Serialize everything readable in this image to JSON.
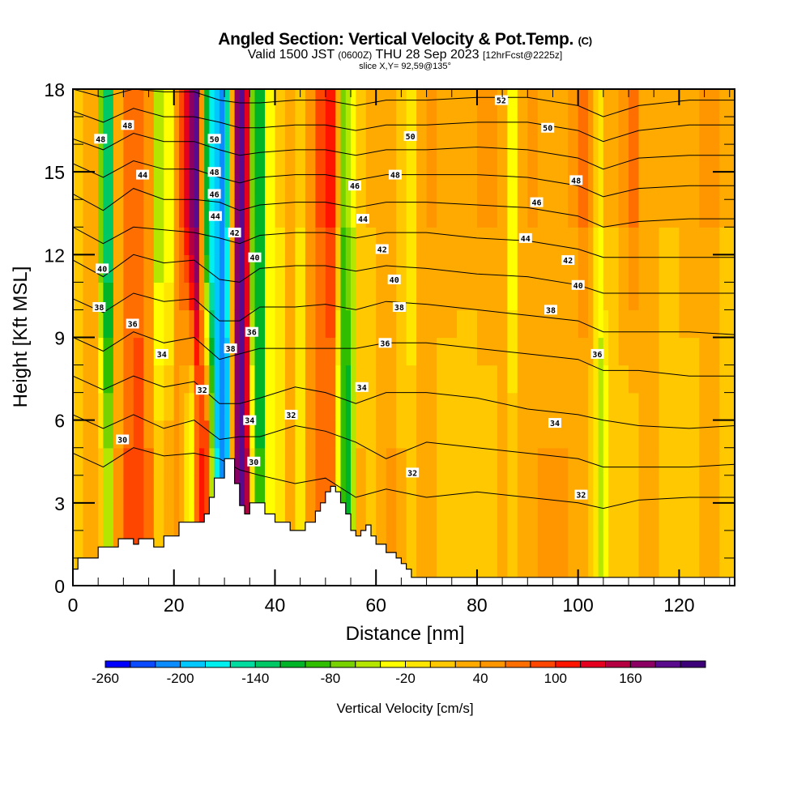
{
  "header": {
    "title_main": "Angled Section: Vertical Velocity & Pot.Temp.",
    "title_units": "(C)",
    "valid_prefix": "Valid 1500 JST",
    "valid_utc": "(0600Z)",
    "valid_date": "THU 28 Sep 2023",
    "forecast": "[12hrFcst@2225z]",
    "slice": "slice X,Y= 92,59@135°"
  },
  "chart_data": {
    "type": "heatmap",
    "title": "Angled Section: Vertical Velocity & Pot.Temp. (C)",
    "subtitle": "Valid 1500 JST (0600Z) THU 28 Sep 2023 [12hrFcst@2225z]",
    "slice": "slice X,Y= 92,59@135°",
    "xlabel": "Distance [nm]",
    "ylabel": "Height [Kft MSL]",
    "xlim": [
      0,
      131
    ],
    "ylim": [
      0,
      18
    ],
    "xticks": [
      0,
      20,
      40,
      60,
      80,
      100,
      120
    ],
    "yticks": [
      0,
      3,
      6,
      9,
      12,
      15,
      18
    ],
    "xtick_labels": [
      "0",
      "20",
      "40",
      "60",
      "80",
      "100",
      "120"
    ],
    "ytick_labels": [
      "0",
      "3",
      "6",
      "9",
      "12",
      "15",
      "18"
    ],
    "colorbar": {
      "title": "Vertical Velocity [cm/s]",
      "placement": "bottom",
      "min": -260,
      "step": 20,
      "tick_values": [
        -260,
        -200,
        -140,
        -80,
        -20,
        40,
        100,
        160
      ],
      "tick_labels": [
        "-260",
        "-200",
        "-140",
        "-80",
        "-20",
        "40",
        "100",
        "160"
      ],
      "colors": [
        "#0000ff",
        "#0a4bff",
        "#0a8cff",
        "#00c8ff",
        "#00f0f0",
        "#00dca0",
        "#00c864",
        "#00b428",
        "#32be00",
        "#78d200",
        "#b4e600",
        "#ffff00",
        "#ffe600",
        "#ffc800",
        "#ffaa00",
        "#ff9600",
        "#ff6e00",
        "#ff4600",
        "#ff1400",
        "#e60020",
        "#b40040",
        "#8c0064",
        "#5a0a8c",
        "#3c0078"
      ]
    },
    "velocity_columns": {
      "description": "Dominant vertical velocity (cm/s) per distance column, lower (0-9 kft) and upper (9-18 kft) halves",
      "distance_nm": [
        0,
        2,
        4,
        5,
        6,
        8,
        10,
        12,
        14,
        16,
        18,
        20,
        21,
        22,
        23,
        24,
        25,
        26,
        27,
        28,
        29,
        30,
        31,
        32,
        33,
        34,
        35,
        36,
        38,
        40,
        42,
        44,
        46,
        48,
        50,
        52,
        53,
        54,
        55,
        56,
        58,
        60,
        62,
        64,
        66,
        68,
        70,
        72,
        76,
        80,
        84,
        86,
        88,
        90,
        92,
        94,
        96,
        98,
        100,
        102,
        103,
        104,
        105,
        106,
        108,
        110,
        112,
        116,
        120,
        124,
        128,
        131
      ],
      "lower": [
        10,
        20,
        30,
        0,
        -60,
        40,
        80,
        90,
        60,
        10,
        30,
        40,
        20,
        -20,
        -40,
        60,
        100,
        90,
        -60,
        -180,
        -220,
        -200,
        20,
        160,
        180,
        140,
        -20,
        -100,
        -40,
        -20,
        20,
        -20,
        40,
        60,
        60,
        -40,
        -100,
        -120,
        -60,
        20,
        0,
        30,
        40,
        20,
        10,
        30,
        20,
        10,
        0,
        10,
        20,
        10,
        20,
        30,
        40,
        40,
        40,
        30,
        20,
        10,
        -20,
        -60,
        -40,
        0,
        10,
        10,
        20,
        10,
        10,
        20,
        10,
        20
      ],
      "upper": [
        10,
        20,
        30,
        -80,
        -140,
        20,
        60,
        70,
        40,
        -60,
        -40,
        40,
        80,
        120,
        160,
        180,
        40,
        -120,
        -180,
        -200,
        -220,
        -160,
        20,
        160,
        180,
        120,
        -80,
        -120,
        -40,
        0,
        20,
        0,
        40,
        80,
        100,
        20,
        -80,
        -60,
        -40,
        0,
        20,
        30,
        20,
        0,
        -20,
        20,
        40,
        30,
        30,
        40,
        20,
        -40,
        20,
        40,
        30,
        20,
        30,
        40,
        60,
        40,
        0,
        -20,
        20,
        20,
        40,
        60,
        30,
        20,
        30,
        40,
        20,
        30
      ]
    },
    "terrain": {
      "description": "Terrain height (kft) along distance (nm), step profile",
      "distance_nm": [
        0,
        1,
        1,
        5,
        5,
        9,
        9,
        12,
        12,
        13,
        13,
        16,
        16,
        18,
        18,
        21,
        21,
        26,
        26,
        27,
        27,
        28,
        28,
        30,
        30,
        32,
        32,
        33,
        33,
        34,
        34,
        35,
        35,
        37,
        37,
        38,
        38,
        40,
        40,
        43,
        43,
        46,
        46,
        48,
        48,
        49,
        49,
        50,
        50,
        51,
        51,
        52,
        52,
        53,
        53,
        54,
        54,
        55,
        55,
        56,
        56,
        57,
        57,
        58,
        58,
        59,
        59,
        60,
        60,
        62,
        62,
        64,
        64,
        65,
        65,
        66,
        66,
        67,
        67,
        71,
        71,
        131
      ],
      "height_kft": [
        0.6,
        0.6,
        1.0,
        1.0,
        1.4,
        1.4,
        1.7,
        1.7,
        1.5,
        1.5,
        1.7,
        1.7,
        1.4,
        1.4,
        1.8,
        1.8,
        2.3,
        2.3,
        2.6,
        2.6,
        3.2,
        3.2,
        3.9,
        3.9,
        4.6,
        4.6,
        3.7,
        3.7,
        2.9,
        2.9,
        2.6,
        2.6,
        3.0,
        3.0,
        3.0,
        3.0,
        2.6,
        2.6,
        2.3,
        2.3,
        2.0,
        2.0,
        2.3,
        2.3,
        2.7,
        2.7,
        3.0,
        3.0,
        3.4,
        3.4,
        3.6,
        3.6,
        3.4,
        3.4,
        3.0,
        3.0,
        2.6,
        2.6,
        2.0,
        2.0,
        1.8,
        1.8,
        2.0,
        2.0,
        2.2,
        2.2,
        1.8,
        1.8,
        1.5,
        1.5,
        1.2,
        1.2,
        1.0,
        1.0,
        0.8,
        0.8,
        0.6,
        0.6,
        0.3,
        0.3,
        0.3,
        0.3
      ]
    },
    "theta_contours": {
      "description": "Potential temperature isentropes (C); heights in kft at each distance",
      "distance_nm": [
        0,
        6,
        12,
        18,
        24,
        29,
        33,
        37,
        44,
        50,
        56,
        62,
        70,
        80,
        90,
        100,
        105,
        112,
        122,
        131
      ],
      "levels": [
        {
          "value": 30,
          "heights": [
            4.8,
            4.3,
            5.0,
            4.7,
            4.8,
            4.6,
            4.2,
            4.0,
            3.7,
            3.9,
            3.2,
            3.5,
            3.2,
            3.4,
            3.2,
            3.0,
            2.8,
            3.1,
            3.2,
            3.2
          ]
        },
        {
          "value": 32,
          "heights": [
            6.2,
            5.7,
            6.2,
            5.7,
            6.0,
            5.3,
            5.4,
            5.4,
            5.8,
            5.6,
            5.2,
            4.6,
            5.2,
            5.0,
            4.8,
            4.6,
            4.3,
            4.3,
            4.3,
            4.4
          ]
        },
        {
          "value": 34,
          "heights": [
            7.6,
            7.1,
            7.6,
            7.2,
            7.4,
            6.6,
            6.6,
            6.8,
            7.2,
            7.0,
            6.6,
            7.0,
            7.0,
            6.8,
            6.4,
            6.2,
            6.0,
            5.8,
            5.7,
            5.8
          ]
        },
        {
          "value": 36,
          "heights": [
            9.0,
            8.5,
            9.2,
            8.8,
            9.0,
            8.2,
            8.4,
            8.6,
            8.6,
            8.6,
            8.6,
            8.8,
            8.8,
            8.6,
            8.4,
            8.2,
            7.8,
            7.8,
            7.6,
            7.6
          ]
        },
        {
          "value": 38,
          "heights": [
            10.4,
            9.9,
            10.6,
            10.3,
            10.4,
            9.6,
            9.6,
            10.1,
            10.1,
            10.2,
            10.0,
            10.3,
            10.2,
            10.0,
            9.8,
            9.6,
            9.2,
            9.2,
            9.2,
            9.1
          ]
        },
        {
          "value": 40,
          "heights": [
            11.8,
            11.2,
            12.0,
            11.7,
            11.8,
            11.1,
            11.0,
            11.5,
            11.6,
            11.6,
            11.4,
            11.6,
            11.5,
            11.3,
            11.2,
            10.9,
            10.6,
            10.6,
            10.6,
            10.6
          ]
        },
        {
          "value": 42,
          "heights": [
            13.0,
            12.4,
            13.0,
            12.9,
            12.8,
            12.6,
            12.4,
            12.7,
            12.8,
            12.8,
            12.6,
            12.8,
            12.8,
            12.6,
            12.5,
            12.2,
            11.9,
            11.9,
            11.9,
            11.9
          ]
        },
        {
          "value": 44,
          "heights": [
            14.2,
            13.6,
            14.4,
            14.0,
            14.0,
            13.9,
            13.6,
            13.8,
            13.9,
            13.9,
            13.7,
            13.9,
            13.9,
            13.8,
            13.7,
            13.4,
            13.0,
            13.2,
            13.3,
            13.3
          ]
        },
        {
          "value": 46,
          "heights": [
            15.3,
            14.8,
            15.4,
            15.1,
            15.1,
            14.8,
            14.6,
            14.8,
            14.9,
            14.9,
            14.7,
            14.9,
            14.9,
            14.9,
            14.8,
            14.5,
            14.1,
            14.4,
            14.5,
            14.5
          ]
        },
        {
          "value": 48,
          "heights": [
            16.2,
            15.8,
            16.4,
            16.1,
            16.1,
            15.8,
            15.6,
            15.7,
            15.8,
            15.8,
            15.6,
            15.8,
            15.8,
            15.9,
            15.8,
            15.5,
            15.1,
            15.5,
            15.6,
            15.6
          ]
        },
        {
          "value": 50,
          "heights": [
            17.2,
            16.8,
            17.3,
            17.0,
            17.0,
            16.8,
            16.6,
            16.6,
            16.7,
            16.7,
            16.5,
            16.7,
            16.7,
            16.8,
            16.8,
            16.5,
            16.1,
            16.5,
            16.7,
            16.7
          ]
        },
        {
          "value": 52,
          "heights": [
            18.0,
            17.7,
            18.0,
            17.9,
            17.9,
            17.6,
            17.5,
            17.5,
            17.6,
            17.6,
            17.4,
            17.6,
            17.6,
            17.7,
            17.7,
            17.4,
            17.0,
            17.4,
            17.6,
            17.6
          ]
        }
      ],
      "labels": [
        {
          "text": "48",
          "x": 5.5,
          "y": 16.2
        },
        {
          "text": "48",
          "x": 10.8,
          "y": 16.7
        },
        {
          "text": "44",
          "x": 13.8,
          "y": 14.9
        },
        {
          "text": "40",
          "x": 5.8,
          "y": 11.5
        },
        {
          "text": "38",
          "x": 5.2,
          "y": 10.1
        },
        {
          "text": "36",
          "x": 11.8,
          "y": 9.5
        },
        {
          "text": "34",
          "x": 17.6,
          "y": 8.4
        },
        {
          "text": "32",
          "x": 25.6,
          "y": 7.1
        },
        {
          "text": "30",
          "x": 9.8,
          "y": 5.3
        },
        {
          "text": "50",
          "x": 28.0,
          "y": 16.2
        },
        {
          "text": "48",
          "x": 28.0,
          "y": 15.0
        },
        {
          "text": "46",
          "x": 28.0,
          "y": 14.2
        },
        {
          "text": "44",
          "x": 28.2,
          "y": 13.4
        },
        {
          "text": "42",
          "x": 32.0,
          "y": 12.8
        },
        {
          "text": "40",
          "x": 36.0,
          "y": 11.9
        },
        {
          "text": "38",
          "x": 31.2,
          "y": 8.6
        },
        {
          "text": "36",
          "x": 35.4,
          "y": 9.2
        },
        {
          "text": "34",
          "x": 35.0,
          "y": 6.0
        },
        {
          "text": "32",
          "x": 43.2,
          "y": 6.2
        },
        {
          "text": "30",
          "x": 35.8,
          "y": 4.5
        },
        {
          "text": "52",
          "x": 84.8,
          "y": 17.6
        },
        {
          "text": "50",
          "x": 66.8,
          "y": 16.3
        },
        {
          "text": "48",
          "x": 63.8,
          "y": 14.9
        },
        {
          "text": "46",
          "x": 55.8,
          "y": 14.5
        },
        {
          "text": "44",
          "x": 57.4,
          "y": 13.3
        },
        {
          "text": "42",
          "x": 61.2,
          "y": 12.2
        },
        {
          "text": "40",
          "x": 63.6,
          "y": 11.1
        },
        {
          "text": "38",
          "x": 64.6,
          "y": 10.1
        },
        {
          "text": "36",
          "x": 61.8,
          "y": 8.8
        },
        {
          "text": "34",
          "x": 57.2,
          "y": 7.2
        },
        {
          "text": "32",
          "x": 67.2,
          "y": 4.1
        },
        {
          "text": "50",
          "x": 94.0,
          "y": 16.6
        },
        {
          "text": "48",
          "x": 99.6,
          "y": 14.7
        },
        {
          "text": "46",
          "x": 91.8,
          "y": 13.9
        },
        {
          "text": "44",
          "x": 89.6,
          "y": 12.6
        },
        {
          "text": "42",
          "x": 98.0,
          "y": 11.8
        },
        {
          "text": "40",
          "x": 100.0,
          "y": 10.9
        },
        {
          "text": "38",
          "x": 94.6,
          "y": 10.0
        },
        {
          "text": "36",
          "x": 103.8,
          "y": 8.4
        },
        {
          "text": "34",
          "x": 95.4,
          "y": 5.9
        },
        {
          "text": "32",
          "x": 100.6,
          "y": 3.3
        }
      ]
    }
  }
}
